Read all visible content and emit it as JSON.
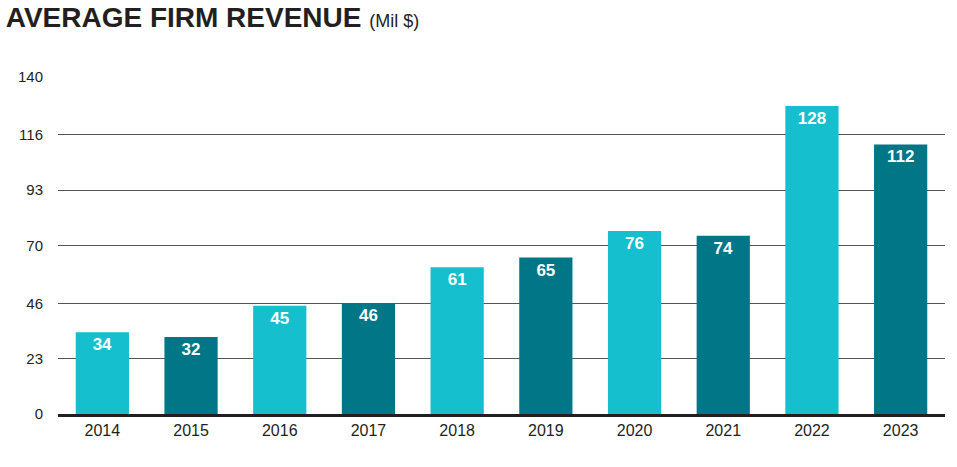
{
  "chart_data": {
    "type": "bar",
    "title": "AVERAGE FIRM REVENUE",
    "subtitle": "(Mil $)",
    "categories": [
      "2014",
      "2015",
      "2016",
      "2017",
      "2018",
      "2019",
      "2020",
      "2021",
      "2022",
      "2023"
    ],
    "values": [
      34,
      32,
      45,
      46,
      61,
      65,
      76,
      74,
      128,
      112
    ],
    "colors": [
      "#15bfcd",
      "#007687",
      "#15bfcd",
      "#007687",
      "#15bfcd",
      "#007687",
      "#15bfcd",
      "#007687",
      "#15bfcd",
      "#007687"
    ],
    "ylim": [
      0,
      140
    ],
    "yticks": [
      0,
      23,
      46,
      70,
      93,
      116,
      140
    ],
    "grid": true,
    "data_labels": true
  }
}
